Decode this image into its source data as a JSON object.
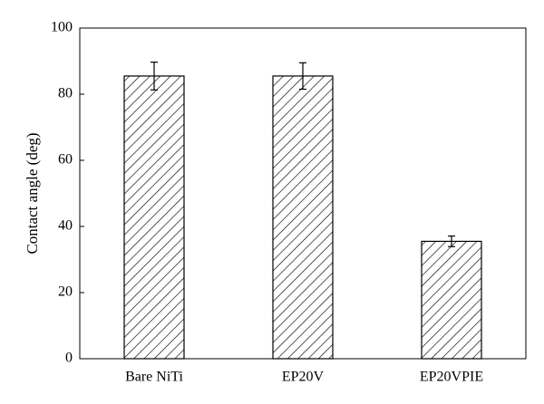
{
  "chart_data": {
    "type": "bar",
    "title": "",
    "xlabel": "",
    "ylabel": "Contact angle (deg)",
    "ylim": [
      0,
      100
    ],
    "yticks": [
      0,
      20,
      40,
      60,
      80,
      100
    ],
    "categories": [
      "Bare NiTi",
      "EP20V",
      "EP20VPIE"
    ],
    "values": [
      85.5,
      85.5,
      35.5
    ],
    "errors": [
      4.2,
      4.0,
      1.6
    ],
    "grid": false,
    "bar_fill": "hatched",
    "bar_color": "#000000"
  }
}
